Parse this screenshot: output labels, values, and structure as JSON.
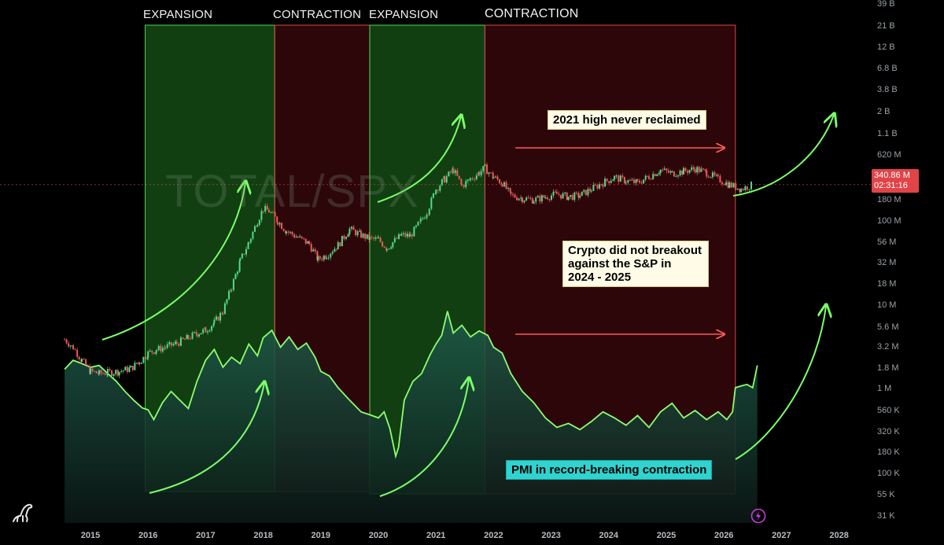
{
  "chart_data": {
    "type": "line",
    "watermark": "TOTAL/SPX",
    "x_ticks": [
      "2015",
      "2016",
      "2017",
      "2018",
      "2019",
      "2020",
      "2021",
      "2022",
      "2023",
      "2024",
      "2025",
      "2026",
      "2027",
      "2028"
    ],
    "y_ticks": [
      "39 B",
      "21 B",
      "12 B",
      "6.8 B",
      "3.8 B",
      "2 B",
      "1.1 B",
      "620 M",
      "340.86 M",
      "180 M",
      "100 M",
      "56 M",
      "32 M",
      "18 M",
      "10 M",
      "5.6 M",
      "3.2 M",
      "1.8 M",
      "1 M",
      "560 K",
      "320 K",
      "180 K",
      "100 K",
      "55 K",
      "31 K"
    ],
    "y_scale": "log",
    "phases": [
      {
        "label": "EXPANSION",
        "start": 2015.95,
        "end": 2018.2,
        "kind": "expansion"
      },
      {
        "label": "CONTRACTION",
        "start": 2018.2,
        "end": 2019.85,
        "kind": "contraction"
      },
      {
        "label": "EXPANSION",
        "start": 2019.85,
        "end": 2021.85,
        "kind": "expansion"
      },
      {
        "label": "CONTRACTION",
        "start": 2021.85,
        "end": 2026.2,
        "kind": "contraction"
      }
    ],
    "annotations": [
      "2021 high never reclaimed",
      "Crypto did not breakout\nagainst the S&P in\n2024 - 2025",
      "PMI in record-breaking contraction"
    ],
    "current_price": {
      "value": "340.86 M",
      "countdown": "02:31:16"
    },
    "series": [
      {
        "kind": "candles",
        "points": [
          [
            2014.55,
            4000000
          ],
          [
            2014.7,
            3200000
          ],
          [
            2014.85,
            2200000
          ],
          [
            2015.0,
            1600000
          ],
          [
            2015.15,
            1500000
          ],
          [
            2015.3,
            1550000
          ],
          [
            2015.5,
            1600000
          ],
          [
            2015.7,
            1750000
          ],
          [
            2015.85,
            2100000
          ],
          [
            2016.0,
            2700000
          ],
          [
            2016.15,
            3000000
          ],
          [
            2016.3,
            3200000
          ],
          [
            2016.5,
            3600000
          ],
          [
            2016.7,
            4200000
          ],
          [
            2016.85,
            4800000
          ],
          [
            2017.0,
            5200000
          ],
          [
            2017.15,
            6500000
          ],
          [
            2017.3,
            9000000
          ],
          [
            2017.45,
            18000000
          ],
          [
            2017.6,
            38000000
          ],
          [
            2017.75,
            65000000
          ],
          [
            2017.9,
            120000000
          ],
          [
            2018.0,
            170000000
          ],
          [
            2018.1,
            160000000
          ],
          [
            2018.25,
            120000000
          ],
          [
            2018.4,
            90000000
          ],
          [
            2018.6,
            75000000
          ],
          [
            2018.8,
            62000000
          ],
          [
            2018.95,
            40000000
          ],
          [
            2019.1,
            45000000
          ],
          [
            2019.3,
            60000000
          ],
          [
            2019.5,
            95000000
          ],
          [
            2019.7,
            80000000
          ],
          [
            2019.85,
            72000000
          ],
          [
            2020.0,
            70000000
          ],
          [
            2020.15,
            55000000
          ],
          [
            2020.25,
            65000000
          ],
          [
            2020.4,
            80000000
          ],
          [
            2020.55,
            78000000
          ],
          [
            2020.7,
            110000000
          ],
          [
            2020.85,
            160000000
          ],
          [
            2021.0,
            300000000
          ],
          [
            2021.15,
            400000000
          ],
          [
            2021.3,
            520000000
          ],
          [
            2021.45,
            330000000
          ],
          [
            2021.6,
            400000000
          ],
          [
            2021.75,
            480000000
          ],
          [
            2021.85,
            550000000
          ],
          [
            2022.0,
            420000000
          ],
          [
            2022.15,
            360000000
          ],
          [
            2022.3,
            250000000
          ],
          [
            2022.5,
            230000000
          ],
          [
            2022.7,
            220000000
          ],
          [
            2022.9,
            240000000
          ],
          [
            2023.1,
            260000000
          ],
          [
            2023.3,
            240000000
          ],
          [
            2023.5,
            250000000
          ],
          [
            2023.7,
            300000000
          ],
          [
            2023.9,
            360000000
          ],
          [
            2024.1,
            420000000
          ],
          [
            2024.3,
            380000000
          ],
          [
            2024.5,
            360000000
          ],
          [
            2024.7,
            430000000
          ],
          [
            2024.9,
            520000000
          ],
          [
            2025.1,
            470000000
          ],
          [
            2025.3,
            500000000
          ],
          [
            2025.5,
            540000000
          ],
          [
            2025.7,
            480000000
          ],
          [
            2025.9,
            400000000
          ],
          [
            2026.1,
            340000000
          ],
          [
            2026.3,
            300000000
          ],
          [
            2026.5,
            340860000
          ]
        ]
      },
      {
        "kind": "area",
        "points": [
          [
            2014.55,
            1700000
          ],
          [
            2014.7,
            2200000
          ],
          [
            2014.85,
            2000000
          ],
          [
            2015.0,
            1800000
          ],
          [
            2015.15,
            1900000
          ],
          [
            2015.3,
            1500000
          ],
          [
            2015.45,
            1200000
          ],
          [
            2015.6,
            900000
          ],
          [
            2015.75,
            700000
          ],
          [
            2015.9,
            560000
          ],
          [
            2016.0,
            530000
          ],
          [
            2016.1,
            400000
          ],
          [
            2016.25,
            650000
          ],
          [
            2016.4,
            900000
          ],
          [
            2016.55,
            700000
          ],
          [
            2016.7,
            550000
          ],
          [
            2016.85,
            1200000
          ],
          [
            2017.0,
            2200000
          ],
          [
            2017.15,
            3000000
          ],
          [
            2017.3,
            1800000
          ],
          [
            2017.45,
            2400000
          ],
          [
            2017.6,
            2000000
          ],
          [
            2017.75,
            3500000
          ],
          [
            2017.9,
            2500000
          ],
          [
            2018.0,
            4200000
          ],
          [
            2018.15,
            5200000
          ],
          [
            2018.3,
            3200000
          ],
          [
            2018.45,
            4300000
          ],
          [
            2018.6,
            3000000
          ],
          [
            2018.75,
            3600000
          ],
          [
            2018.9,
            2400000
          ],
          [
            2019.0,
            1600000
          ],
          [
            2019.15,
            1400000
          ],
          [
            2019.3,
            1000000
          ],
          [
            2019.5,
            700000
          ],
          [
            2019.7,
            500000
          ],
          [
            2019.85,
            460000
          ],
          [
            2020.0,
            420000
          ],
          [
            2020.1,
            500000
          ],
          [
            2020.2,
            310000
          ],
          [
            2020.3,
            140000
          ],
          [
            2020.35,
            180000
          ],
          [
            2020.45,
            700000
          ],
          [
            2020.6,
            1200000
          ],
          [
            2020.75,
            1500000
          ],
          [
            2020.9,
            2600000
          ],
          [
            2021.0,
            3500000
          ],
          [
            2021.1,
            4500000
          ],
          [
            2021.2,
            9000000
          ],
          [
            2021.3,
            4800000
          ],
          [
            2021.45,
            6000000
          ],
          [
            2021.6,
            4300000
          ],
          [
            2021.75,
            5100000
          ],
          [
            2021.9,
            4500000
          ],
          [
            2022.0,
            3200000
          ],
          [
            2022.15,
            2700000
          ],
          [
            2022.3,
            1500000
          ],
          [
            2022.5,
            900000
          ],
          [
            2022.7,
            650000
          ],
          [
            2022.9,
            420000
          ],
          [
            2023.1,
            320000
          ],
          [
            2023.3,
            360000
          ],
          [
            2023.5,
            300000
          ],
          [
            2023.7,
            380000
          ],
          [
            2023.9,
            500000
          ],
          [
            2024.1,
            420000
          ],
          [
            2024.3,
            340000
          ],
          [
            2024.5,
            450000
          ],
          [
            2024.7,
            320000
          ],
          [
            2024.9,
            500000
          ],
          [
            2025.1,
            640000
          ],
          [
            2025.3,
            420000
          ],
          [
            2025.5,
            520000
          ],
          [
            2025.7,
            400000
          ],
          [
            2025.9,
            500000
          ],
          [
            2026.05,
            400000
          ],
          [
            2026.15,
            500000
          ],
          [
            2026.2,
            1000000
          ],
          [
            2026.3,
            1050000
          ],
          [
            2026.4,
            1100000
          ],
          [
            2026.5,
            1000000
          ],
          [
            2026.58,
            1900000
          ]
        ]
      }
    ]
  }
}
